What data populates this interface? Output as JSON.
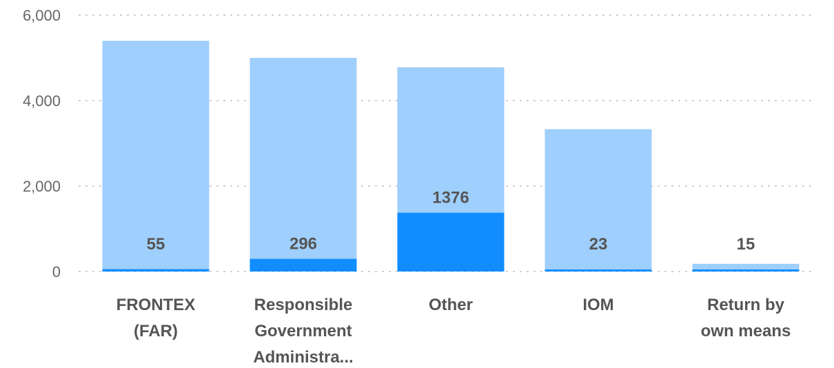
{
  "chart_data": {
    "type": "bar",
    "categories": [
      [
        "FRONTEX",
        "(FAR)"
      ],
      [
        "Responsible",
        "Government",
        "Administra..."
      ],
      [
        "Other"
      ],
      [
        "IOM"
      ],
      [
        "Return by",
        "own means"
      ]
    ],
    "series": [
      {
        "values": [
          5400,
          5000,
          4780,
          3330,
          180
        ]
      },
      {
        "values": [
          55,
          296,
          1376,
          23,
          15
        ]
      }
    ],
    "data_labels": [
      "55",
      "296",
      "1376",
      "23",
      "15"
    ],
    "ylim": [
      0,
      6000
    ],
    "yticks": [
      0,
      2000,
      4000,
      6000
    ],
    "ytick_labels": [
      "0",
      "2,000",
      "4,000",
      "6,000"
    ],
    "grid": true,
    "colors": {
      "total": "#9fcffc",
      "subset": "#118dff",
      "grid": "#c8c8c8",
      "text": "#555555"
    }
  }
}
